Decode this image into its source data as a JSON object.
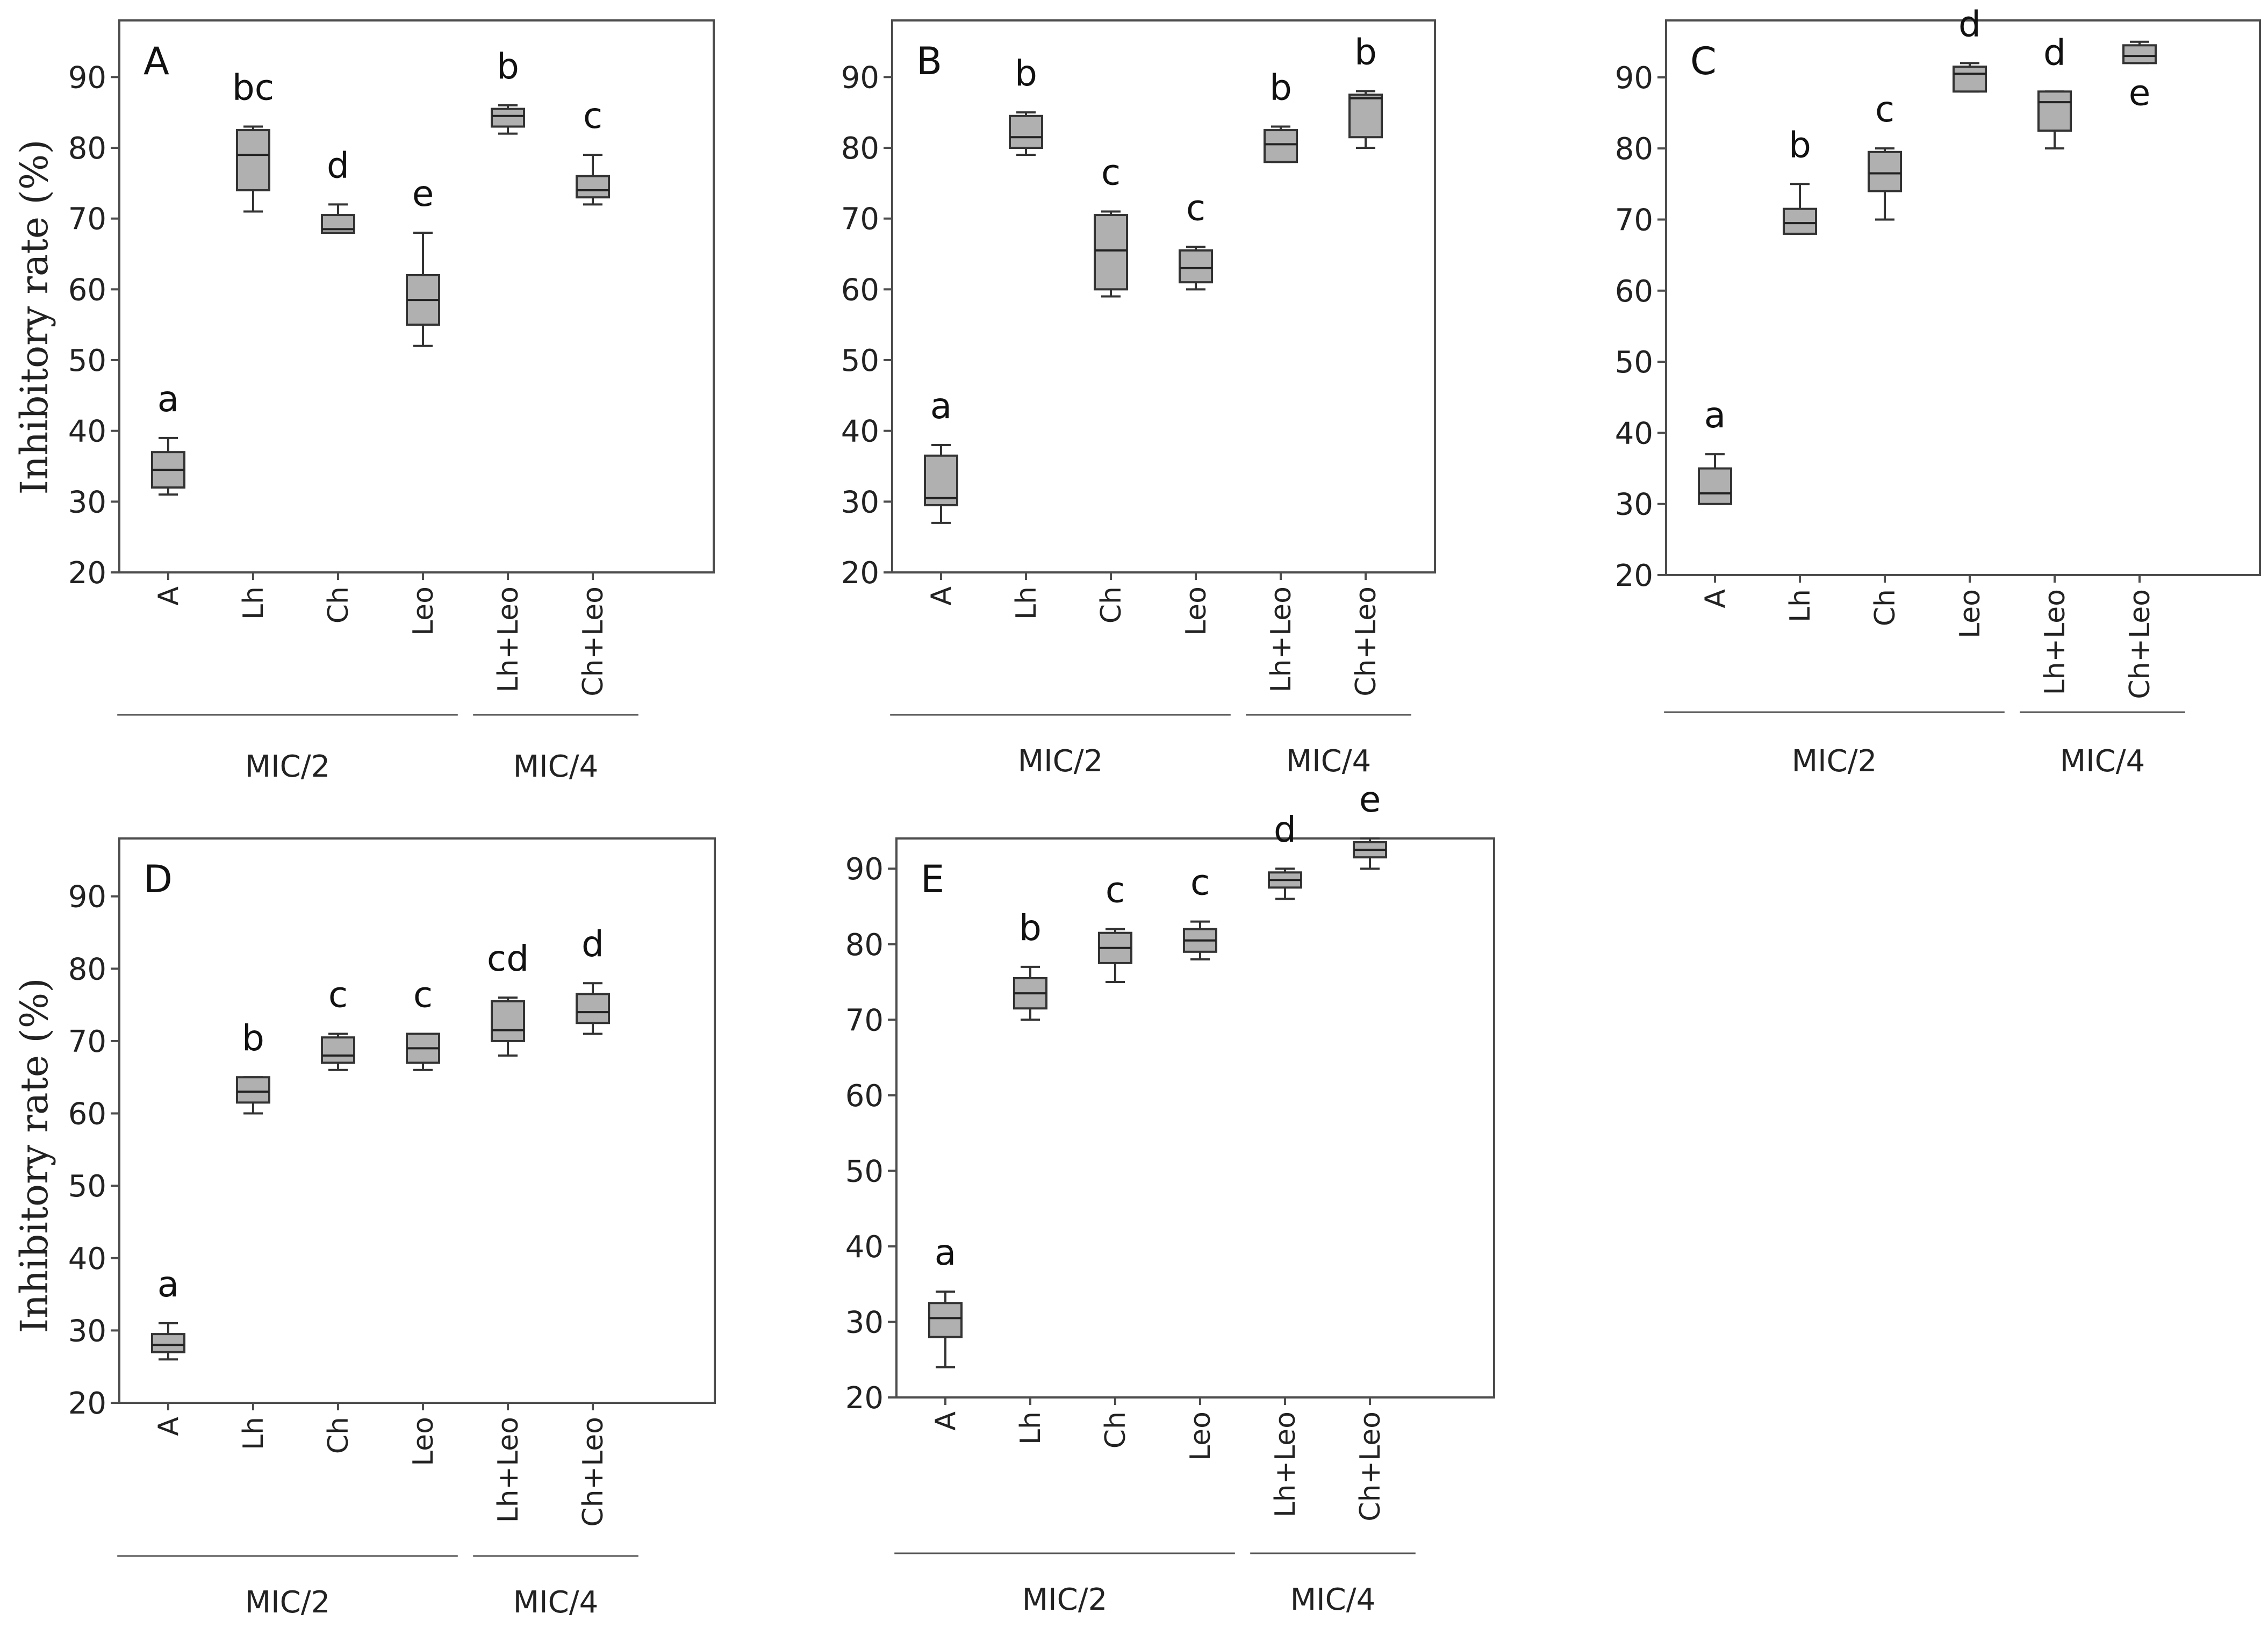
{
  "y_axis_title": "Inhibitory rate (%)",
  "group_labels": [
    "MIC/2",
    "MIC/4"
  ],
  "chart_data": [
    {
      "type": "box",
      "title": "A",
      "ylabel": "Inhibitory rate (%)",
      "ylim": [
        20,
        98
      ],
      "yticks": [
        20,
        30,
        40,
        50,
        60,
        70,
        80,
        90
      ],
      "categories": [
        "A",
        "Lh",
        "Ch",
        "Leo",
        "Lh+Leo",
        "Ch+Leo"
      ],
      "groups": [
        {
          "label": "MIC/2",
          "categories": [
            "A",
            "Lh",
            "Ch",
            "Leo"
          ]
        },
        {
          "label": "MIC/4",
          "categories": [
            "Lh+Leo",
            "Ch+Leo"
          ]
        }
      ],
      "boxes": [
        {
          "category": "A",
          "min": 31,
          "q1": 32,
          "median": 34.5,
          "q3": 37,
          "max": 39,
          "letter": "a"
        },
        {
          "category": "Lh",
          "min": 71,
          "q1": 74,
          "median": 79,
          "q3": 82.5,
          "max": 83,
          "letter": "bc"
        },
        {
          "category": "Ch",
          "min": 68,
          "q1": 68,
          "median": 68.5,
          "q3": 70.5,
          "max": 72,
          "letter": "d"
        },
        {
          "category": "Leo",
          "min": 52,
          "q1": 55,
          "median": 58.5,
          "q3": 62,
          "max": 68,
          "letter": "e"
        },
        {
          "category": "Lh+Leo",
          "min": 82,
          "q1": 83,
          "median": 84.5,
          "q3": 85.5,
          "max": 86,
          "letter": "b"
        },
        {
          "category": "Ch+Leo",
          "min": 72,
          "q1": 73,
          "median": 74,
          "q3": 76,
          "max": 79,
          "letter": "c"
        }
      ]
    },
    {
      "type": "box",
      "title": "B",
      "ylabel": "",
      "ylim": [
        20,
        98
      ],
      "yticks": [
        20,
        30,
        40,
        50,
        60,
        70,
        80,
        90
      ],
      "categories": [
        "A",
        "Lh",
        "Ch",
        "Leo",
        "Lh+Leo",
        "Ch+Leo"
      ],
      "groups": [
        {
          "label": "MIC/2",
          "categories": [
            "A",
            "Lh",
            "Ch",
            "Leo"
          ]
        },
        {
          "label": "MIC/4",
          "categories": [
            "Lh+Leo",
            "Ch+Leo"
          ]
        }
      ],
      "boxes": [
        {
          "category": "A",
          "min": 27,
          "q1": 29.5,
          "median": 30.5,
          "q3": 36.5,
          "max": 38,
          "letter": "a"
        },
        {
          "category": "Lh",
          "min": 79,
          "q1": 80,
          "median": 81.5,
          "q3": 84.5,
          "max": 85,
          "letter": "b"
        },
        {
          "category": "Ch",
          "min": 59,
          "q1": 60,
          "median": 65.5,
          "q3": 70.5,
          "max": 71,
          "letter": "c"
        },
        {
          "category": "Leo",
          "min": 60,
          "q1": 61,
          "median": 63,
          "q3": 65.5,
          "max": 66,
          "letter": "c"
        },
        {
          "category": "Lh+Leo",
          "min": 78,
          "q1": 78,
          "median": 80.5,
          "q3": 82.5,
          "max": 83,
          "letter": "b"
        },
        {
          "category": "Ch+Leo",
          "min": 80,
          "q1": 81.5,
          "median": 87,
          "q3": 87.5,
          "max": 88,
          "letter": "b"
        }
      ]
    },
    {
      "type": "box",
      "title": "C",
      "ylabel": "",
      "ylim": [
        20,
        98
      ],
      "yticks": [
        20,
        30,
        40,
        50,
        60,
        70,
        80,
        90
      ],
      "categories": [
        "A",
        "Lh",
        "Ch",
        "Leo",
        "Lh+Leo",
        "Ch+Leo"
      ],
      "groups": [
        {
          "label": "MIC/2",
          "categories": [
            "A",
            "Lh",
            "Ch",
            "Leo"
          ]
        },
        {
          "label": "MIC/4",
          "categories": [
            "Lh+Leo",
            "Ch+Leo"
          ]
        }
      ],
      "boxes": [
        {
          "category": "A",
          "min": 30,
          "q1": 30,
          "median": 31.5,
          "q3": 35,
          "max": 37,
          "letter": "a",
          "letter_pos": "above"
        },
        {
          "category": "Lh",
          "min": 68,
          "q1": 68,
          "median": 69.5,
          "q3": 71.5,
          "max": 75,
          "letter": "b",
          "letter_pos": "above"
        },
        {
          "category": "Ch",
          "min": 70,
          "q1": 74,
          "median": 76.5,
          "q3": 79.5,
          "max": 80,
          "letter": "c",
          "letter_pos": "above"
        },
        {
          "category": "Leo",
          "min": 88,
          "q1": 88,
          "median": 90.5,
          "q3": 91.5,
          "max": 92,
          "letter": "d",
          "letter_pos": "above"
        },
        {
          "category": "Lh+Leo",
          "min": 80,
          "q1": 82.5,
          "median": 86.5,
          "q3": 88,
          "max": 88,
          "letter": "d",
          "letter_pos": "above"
        },
        {
          "category": "Ch+Leo",
          "min": 92,
          "q1": 92,
          "median": 93,
          "q3": 94.5,
          "max": 95,
          "letter": "e",
          "letter_pos": "below"
        }
      ]
    },
    {
      "type": "box",
      "title": "D",
      "ylabel": "Inhibitory rate (%)",
      "ylim": [
        20,
        98
      ],
      "yticks": [
        20,
        30,
        40,
        50,
        60,
        70,
        80,
        90
      ],
      "categories": [
        "A",
        "Lh",
        "Ch",
        "Leo",
        "Lh+Leo",
        "Ch+Leo"
      ],
      "groups": [
        {
          "label": "MIC/2",
          "categories": [
            "A",
            "Lh",
            "Ch",
            "Leo"
          ]
        },
        {
          "label": "MIC/4",
          "categories": [
            "Lh+Leo",
            "Ch+Leo"
          ]
        }
      ],
      "boxes": [
        {
          "category": "A",
          "min": 26,
          "q1": 27,
          "median": 28,
          "q3": 29.5,
          "max": 31,
          "letter": "a"
        },
        {
          "category": "Lh",
          "min": 60,
          "q1": 61.5,
          "median": 63,
          "q3": 65,
          "max": 65,
          "letter": "b"
        },
        {
          "category": "Ch",
          "min": 66,
          "q1": 67,
          "median": 68,
          "q3": 70.5,
          "max": 71,
          "letter": "c"
        },
        {
          "category": "Leo",
          "min": 66,
          "q1": 67,
          "median": 69,
          "q3": 71,
          "max": 71,
          "letter": "c"
        },
        {
          "category": "Lh+Leo",
          "min": 68,
          "q1": 70,
          "median": 71.5,
          "q3": 75.5,
          "max": 76,
          "letter": "cd"
        },
        {
          "category": "Ch+Leo",
          "min": 71,
          "q1": 72.5,
          "median": 74,
          "q3": 76.5,
          "max": 78,
          "letter": "d"
        }
      ]
    },
    {
      "type": "box",
      "title": "E",
      "ylabel": "",
      "ylim": [
        20,
        94
      ],
      "yticks": [
        20,
        30,
        40,
        50,
        60,
        70,
        80,
        90
      ],
      "categories": [
        "A",
        "Lh",
        "Ch",
        "Leo",
        "Lh+Leo",
        "Ch+Leo"
      ],
      "groups": [
        {
          "label": "MIC/2",
          "categories": [
            "A",
            "Lh",
            "Ch",
            "Leo"
          ]
        },
        {
          "label": "MIC/4",
          "categories": [
            "Lh+Leo",
            "Ch+Leo"
          ]
        }
      ],
      "boxes": [
        {
          "category": "A",
          "min": 24,
          "q1": 28,
          "median": 30.5,
          "q3": 32.5,
          "max": 34,
          "letter": "a"
        },
        {
          "category": "Lh",
          "min": 70,
          "q1": 71.5,
          "median": 73.5,
          "q3": 75.5,
          "max": 77,
          "letter": "b"
        },
        {
          "category": "Ch",
          "min": 75,
          "q1": 77.5,
          "median": 79.5,
          "q3": 81.5,
          "max": 82,
          "letter": "c"
        },
        {
          "category": "Leo",
          "min": 78,
          "q1": 79,
          "median": 80.5,
          "q3": 82,
          "max": 83,
          "letter": "c"
        },
        {
          "category": "Lh+Leo",
          "min": 86,
          "q1": 87.5,
          "median": 88.5,
          "q3": 89.5,
          "max": 90,
          "letter": "d"
        },
        {
          "category": "Ch+Leo",
          "min": 90,
          "q1": 91.5,
          "median": 92.5,
          "q3": 93.5,
          "max": 94,
          "letter": "e"
        }
      ]
    }
  ]
}
